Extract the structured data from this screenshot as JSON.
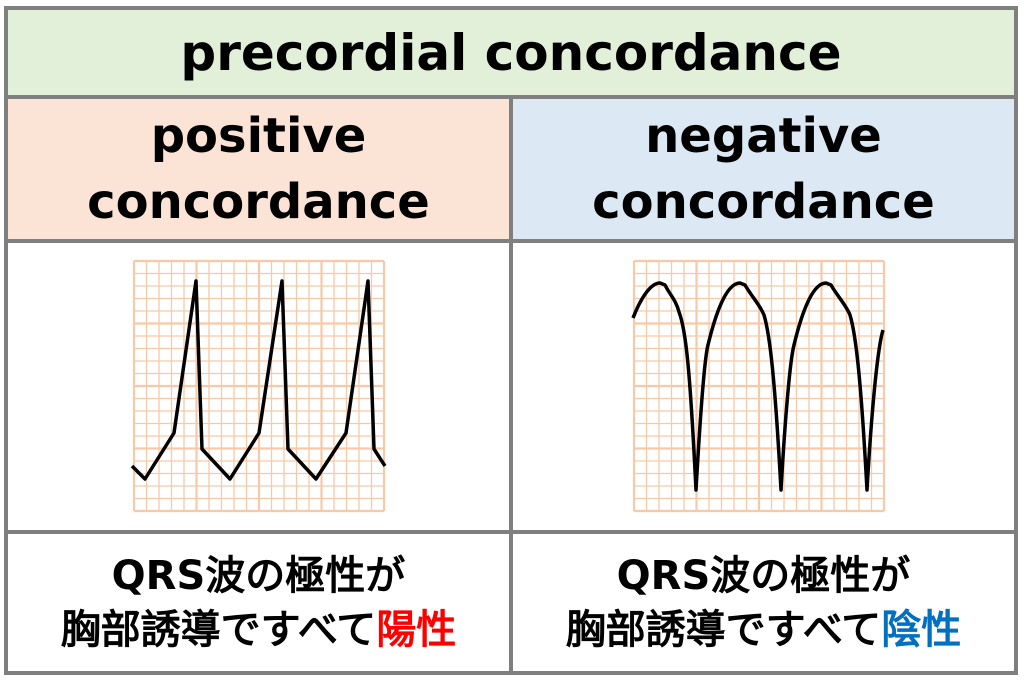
{
  "title": "precordial concordance",
  "colors": {
    "title_bg": "#e2efd9",
    "positive_bg": "#fbe4d5",
    "negative_bg": "#dde8f5",
    "grid": "#f8c9a8",
    "border": "#7f7f7f",
    "positive_accent": "#ff0000",
    "negative_accent": "#0070c0"
  },
  "positive": {
    "heading_line1": "positive",
    "heading_line2": "concordance",
    "desc_line1": "QRS波の極性が",
    "desc_line2_prefix": "胸部誘導ですべて",
    "desc_line2_accent": "陽性",
    "waveform": "upright-QRS"
  },
  "negative": {
    "heading_line1": "negative",
    "heading_line2": "concordance",
    "desc_line1": "QRS波の極性が",
    "desc_line2_prefix": "胸部誘導ですべて",
    "desc_line2_accent": "陰性",
    "waveform": "inverted-QRS"
  }
}
